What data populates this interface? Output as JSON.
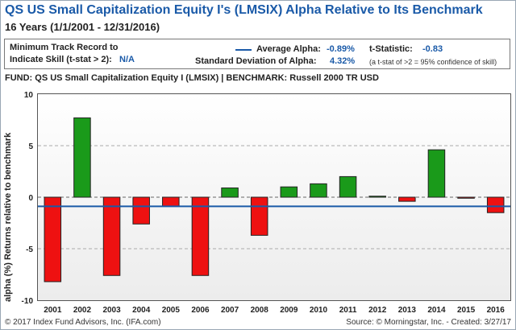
{
  "header": {
    "title": "QS US Small Capitalization Equity I's (LMSIX) Alpha Relative to Its Benchmark",
    "subtitle": "16 Years (1/1/2001 - 12/31/2016)"
  },
  "stats": {
    "min_track_label_1": "Minimum Track Record to",
    "min_track_label_2": "Indicate Skill (t-stat > 2):",
    "min_track_value": "N/A",
    "avg_alpha_label": "Average Alpha:",
    "avg_alpha_value": "-0.89%",
    "tstat_label": "t-Statistic:",
    "tstat_value": "-0.83",
    "std_label": "Standard Deviation of Alpha:",
    "std_value": "4.32%",
    "tstat_note": "(a t-stat of >2 = 95% confidence of skill)"
  },
  "fund_line": "FUND: QS US Small Capitalization Equity I (LMSIX)  | BENCHMARK: Russell 2000 TR USD",
  "footer": {
    "left": "© 2017 Index Fund Advisors, Inc. (IFA.com)",
    "right": "Source: © Morningstar, Inc. - Created: 3/27/17"
  },
  "colors": {
    "positive": "#1a9a1a",
    "negative": "#ee1111",
    "average_line": "#1a5aa8",
    "accent": "#1a5aa8"
  },
  "chart_data": {
    "type": "bar",
    "title": "",
    "xlabel": "",
    "ylabel": "alpha (%) Returns relative to benchmark",
    "categories": [
      "2001",
      "2002",
      "2003",
      "2004",
      "2005",
      "2006",
      "2007",
      "2008",
      "2009",
      "2010",
      "2011",
      "2012",
      "2013",
      "2014",
      "2015",
      "2016"
    ],
    "values": [
      -8.2,
      7.7,
      -7.6,
      -2.6,
      -0.9,
      -7.6,
      0.9,
      -3.7,
      1.0,
      1.3,
      2.0,
      0.1,
      -0.4,
      4.6,
      -0.1,
      -1.5
    ],
    "ylim": [
      -10,
      10
    ],
    "yticks": [
      -10,
      -5,
      0,
      5,
      10
    ],
    "ytick_labels": [
      "-10",
      "-5",
      "0",
      "5",
      "10"
    ],
    "average_line": -0.89,
    "grid": "horizontal dashed"
  }
}
